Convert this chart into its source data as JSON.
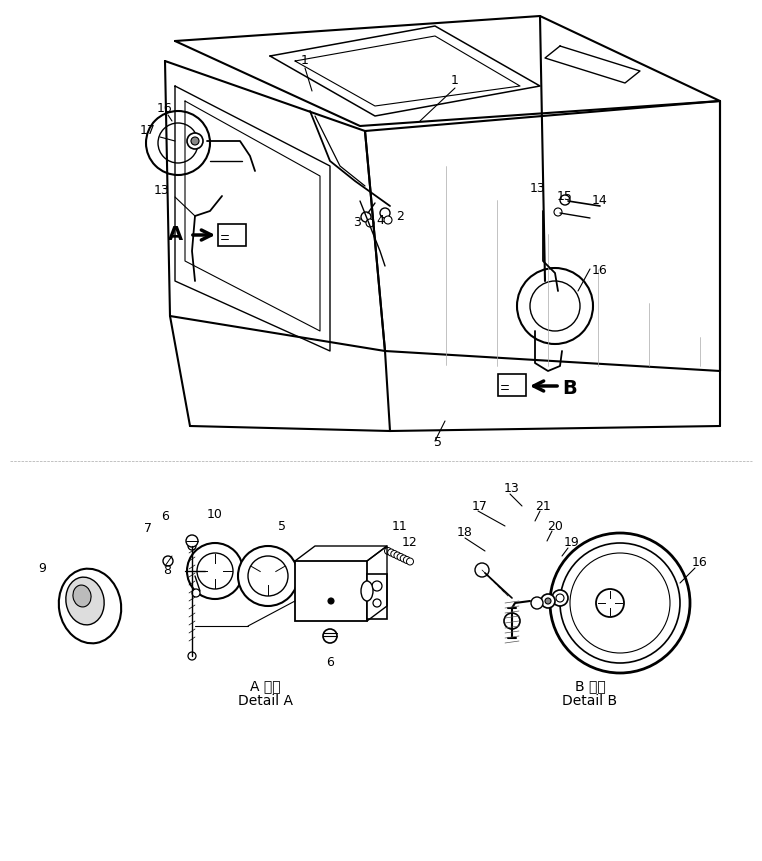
{
  "bg_color": "#ffffff",
  "line_color": "#000000",
  "fig_width": 7.62,
  "fig_height": 8.61,
  "dpi": 100,
  "detail_A_label_line1": "A 詳細",
  "detail_A_label_line2": "Detail A",
  "detail_B_label_line1": "B 詳細",
  "detail_B_label_line2": "Detail B"
}
